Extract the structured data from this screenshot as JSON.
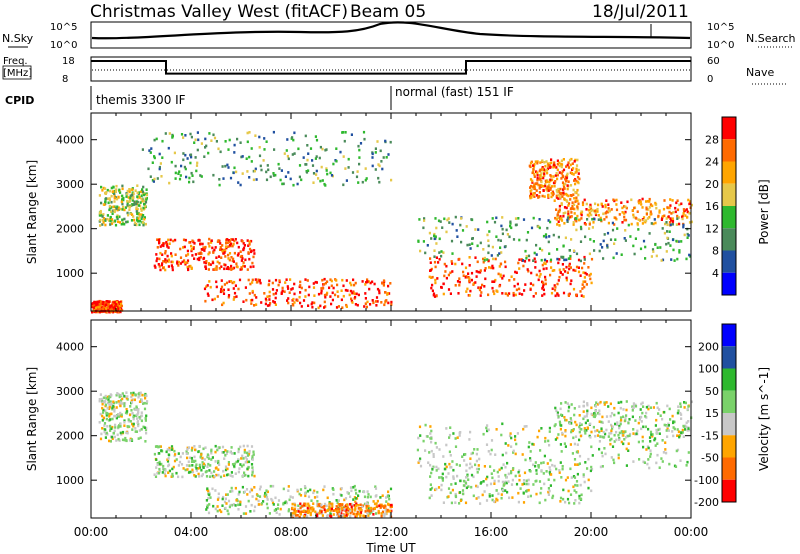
{
  "header": {
    "title": "Christmas Valley West (fitACF)",
    "beam": "Beam 05",
    "date": "18/Jul/2011"
  },
  "noise_panel": {
    "left_label": "N.Sky",
    "right_label": "N.Search",
    "left_ticks": [
      "10^5",
      "10^0"
    ],
    "right_ticks": [
      "10^5",
      "10^0"
    ]
  },
  "freq_panel": {
    "left_label_1": "Freq.",
    "left_label_2": "[MHz]",
    "right_label": "Nave",
    "left_ticks": [
      "18",
      "8"
    ],
    "right_ticks": [
      "60",
      "0"
    ],
    "freq_steps": [
      {
        "start_h": 0.0,
        "end_h": 3.0,
        "value": 1
      },
      {
        "start_h": 3.0,
        "end_h": 12.0,
        "value": 0.3
      },
      {
        "start_h": 12.0,
        "end_h": 15.0,
        "value": 0.3
      },
      {
        "start_h": 15.0,
        "end_h": 24.0,
        "value": 1
      }
    ]
  },
  "cpid_panel": {
    "label": "CPID",
    "modes": [
      {
        "text": "themis 3300 IF",
        "start_h": 0
      },
      {
        "text": "normal (fast) 151 IF",
        "start_h": 12
      }
    ]
  },
  "chart_data": [
    {
      "type": "heatmap",
      "name": "power",
      "ylabel": "Slant Range [km]",
      "xlabel": "Time UT",
      "y_ticks": [
        1000,
        2000,
        3000,
        4000
      ],
      "ylim": [
        150,
        4600
      ],
      "x_ticks": [
        "00:00",
        "04:00",
        "08:00",
        "12:00",
        "16:00",
        "20:00",
        "00:00"
      ],
      "xlim_hours": [
        0,
        24
      ],
      "colorbar": {
        "label": "Power [dB]",
        "ticks": [
          "28",
          "24",
          "20",
          "16",
          "12",
          "8",
          "4"
        ],
        "colors": [
          "#ff0000",
          "#ff6a00",
          "#ffa500",
          "#e6c84a",
          "#2eb82e",
          "#4a8a5a",
          "#2050a0",
          "#0000ff"
        ]
      },
      "regions": [
        {
          "t0": 0.3,
          "t1": 2.2,
          "r0": 2100,
          "r1": 3000,
          "level": 4
        },
        {
          "t0": 0.0,
          "t1": 1.2,
          "r0": 150,
          "r1": 400,
          "level": 1
        },
        {
          "t0": 2.5,
          "t1": 6.5,
          "r0": 1100,
          "r1": 1800,
          "level": 1
        },
        {
          "t0": 4.5,
          "t1": 12.0,
          "r0": 250,
          "r1": 900,
          "level": 1
        },
        {
          "t0": 2.0,
          "t1": 12.0,
          "r0": 3000,
          "r1": 4200,
          "level": 5
        },
        {
          "t0": 13.5,
          "t1": 20.0,
          "r0": 500,
          "r1": 1400,
          "level": 1
        },
        {
          "t0": 18.5,
          "t1": 24.0,
          "r0": 2100,
          "r1": 2700,
          "level": 2
        },
        {
          "t0": 13.0,
          "t1": 24.0,
          "r0": 1300,
          "r1": 2300,
          "level": 5
        },
        {
          "t0": 17.5,
          "t1": 19.5,
          "r0": 2700,
          "r1": 3600,
          "level": 2
        }
      ]
    },
    {
      "type": "heatmap",
      "name": "velocity",
      "ylabel": "Slant Range [km]",
      "xlabel": "Time UT",
      "y_ticks": [
        1000,
        2000,
        3000,
        4000
      ],
      "ylim": [
        150,
        4600
      ],
      "x_ticks": [
        "00:00",
        "04:00",
        "08:00",
        "12:00",
        "16:00",
        "20:00",
        "00:00"
      ],
      "xlim_hours": [
        0,
        24
      ],
      "colorbar": {
        "label": "Velocity [m s^-1]",
        "ticks": [
          "200",
          "100",
          "50",
          "15",
          "-15",
          "-50",
          "-100",
          "-200"
        ],
        "colors": [
          "#0000ff",
          "#2050a0",
          "#2eb82e",
          "#7ad26a",
          "#c8c8c8",
          "#ffa500",
          "#ff6a00",
          "#ff0000"
        ]
      },
      "regions": [
        {
          "t0": 0.3,
          "t1": 2.2,
          "r0": 1900,
          "r1": 3000,
          "level": 4
        },
        {
          "t0": 2.5,
          "t1": 6.5,
          "r0": 1100,
          "r1": 1800,
          "level": 4
        },
        {
          "t0": 4.5,
          "t1": 12.0,
          "r0": 250,
          "r1": 900,
          "level": 4
        },
        {
          "t0": 13.5,
          "t1": 20.0,
          "r0": 500,
          "r1": 1400,
          "level": 4
        },
        {
          "t0": 18.5,
          "t1": 24.0,
          "r0": 2000,
          "r1": 2800,
          "level": 4
        },
        {
          "t0": 13.0,
          "t1": 24.0,
          "r0": 1300,
          "r1": 2300,
          "level": 4
        },
        {
          "t0": 8.0,
          "t1": 12.0,
          "r0": 200,
          "r1": 500,
          "level": 6
        }
      ]
    }
  ]
}
